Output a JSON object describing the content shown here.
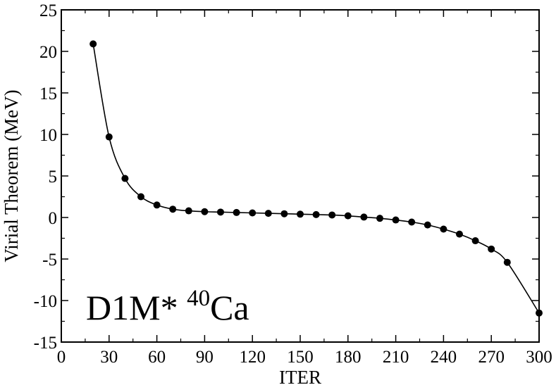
{
  "chart_data": {
    "type": "line",
    "title": "",
    "xlabel": "ITER",
    "ylabel": "Virial Theorem (MeV)",
    "xlim": [
      0,
      300
    ],
    "ylim": [
      -15,
      25
    ],
    "x_ticks": [
      0,
      30,
      60,
      90,
      120,
      150,
      180,
      210,
      240,
      270,
      300
    ],
    "y_ticks": [
      -15,
      -10,
      -5,
      0,
      5,
      10,
      15,
      20,
      25
    ],
    "x_tick_labels": [
      "0",
      "30",
      "60",
      "90",
      "120",
      "150",
      "180",
      "210",
      "240",
      "270",
      "300"
    ],
    "y_tick_labels": [
      "-15",
      "-10",
      "-5",
      "0",
      "5",
      "10",
      "15",
      "20",
      "25"
    ],
    "grid": false,
    "annotation": {
      "main": "D1M* ",
      "superscript": "40",
      "element": "Ca"
    },
    "series": [
      {
        "color": "#000000",
        "marker": "circle",
        "x": [
          20,
          30,
          40,
          50,
          60,
          70,
          80,
          90,
          100,
          110,
          120,
          130,
          140,
          150,
          160,
          170,
          180,
          190,
          200,
          210,
          220,
          230,
          240,
          250,
          260,
          270,
          280,
          300
        ],
        "y": [
          20.9,
          9.7,
          4.7,
          2.5,
          1.5,
          1.0,
          0.8,
          0.7,
          0.65,
          0.6,
          0.55,
          0.5,
          0.45,
          0.4,
          0.35,
          0.3,
          0.2,
          0.05,
          -0.1,
          -0.3,
          -0.55,
          -0.9,
          -1.4,
          -2.0,
          -2.8,
          -3.8,
          -5.4,
          -11.5
        ]
      }
    ]
  }
}
